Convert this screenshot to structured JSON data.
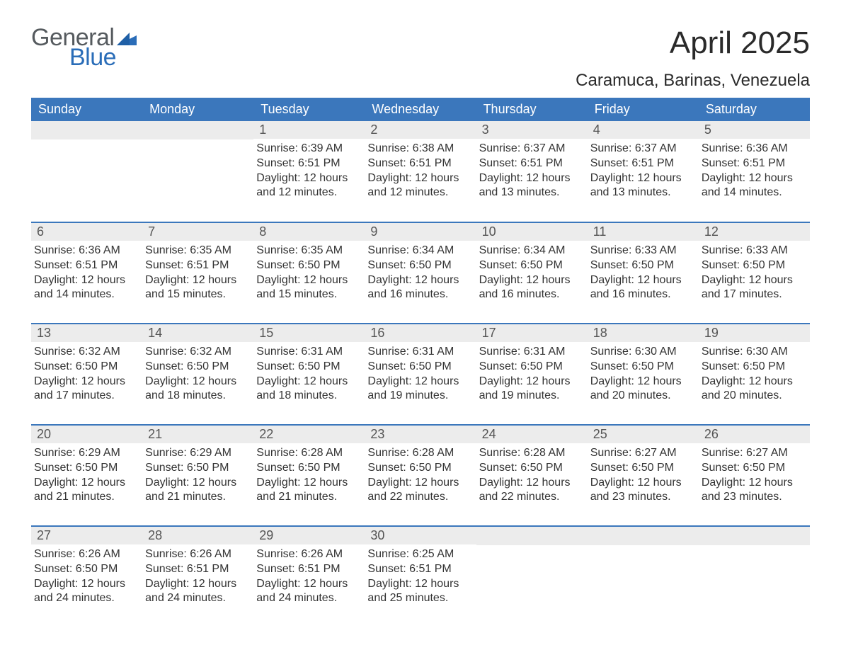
{
  "brand": {
    "line1": "General",
    "line2": "Blue",
    "text_color": "#555a5e",
    "accent_color": "#2a6db8"
  },
  "title": "April 2025",
  "location": "Caramuca, Barinas, Venezuela",
  "colors": {
    "header_bg": "#3b77bc",
    "header_text": "#ffffff",
    "daynum_bg": "#ececec",
    "week_divider": "#3b77bc",
    "body_text": "#333333",
    "background": "#ffffff"
  },
  "typography": {
    "title_fontsize": 44,
    "location_fontsize": 24,
    "dow_fontsize": 18,
    "cell_fontsize": 16
  },
  "labels": {
    "sunrise": "Sunrise: ",
    "sunset": "Sunset: ",
    "daylight_prefix": "Daylight: ",
    "daylight_join": " and ",
    "daylight_suffix": "."
  },
  "days_of_week": [
    "Sunday",
    "Monday",
    "Tuesday",
    "Wednesday",
    "Thursday",
    "Friday",
    "Saturday"
  ],
  "weeks": [
    [
      null,
      null,
      {
        "n": "1",
        "sunrise": "6:39 AM",
        "sunset": "6:51 PM",
        "dl_h": "12 hours",
        "dl_m": "12 minutes"
      },
      {
        "n": "2",
        "sunrise": "6:38 AM",
        "sunset": "6:51 PM",
        "dl_h": "12 hours",
        "dl_m": "12 minutes"
      },
      {
        "n": "3",
        "sunrise": "6:37 AM",
        "sunset": "6:51 PM",
        "dl_h": "12 hours",
        "dl_m": "13 minutes"
      },
      {
        "n": "4",
        "sunrise": "6:37 AM",
        "sunset": "6:51 PM",
        "dl_h": "12 hours",
        "dl_m": "13 minutes"
      },
      {
        "n": "5",
        "sunrise": "6:36 AM",
        "sunset": "6:51 PM",
        "dl_h": "12 hours",
        "dl_m": "14 minutes"
      }
    ],
    [
      {
        "n": "6",
        "sunrise": "6:36 AM",
        "sunset": "6:51 PM",
        "dl_h": "12 hours",
        "dl_m": "14 minutes"
      },
      {
        "n": "7",
        "sunrise": "6:35 AM",
        "sunset": "6:51 PM",
        "dl_h": "12 hours",
        "dl_m": "15 minutes"
      },
      {
        "n": "8",
        "sunrise": "6:35 AM",
        "sunset": "6:50 PM",
        "dl_h": "12 hours",
        "dl_m": "15 minutes"
      },
      {
        "n": "9",
        "sunrise": "6:34 AM",
        "sunset": "6:50 PM",
        "dl_h": "12 hours",
        "dl_m": "16 minutes"
      },
      {
        "n": "10",
        "sunrise": "6:34 AM",
        "sunset": "6:50 PM",
        "dl_h": "12 hours",
        "dl_m": "16 minutes"
      },
      {
        "n": "11",
        "sunrise": "6:33 AM",
        "sunset": "6:50 PM",
        "dl_h": "12 hours",
        "dl_m": "16 minutes"
      },
      {
        "n": "12",
        "sunrise": "6:33 AM",
        "sunset": "6:50 PM",
        "dl_h": "12 hours",
        "dl_m": "17 minutes"
      }
    ],
    [
      {
        "n": "13",
        "sunrise": "6:32 AM",
        "sunset": "6:50 PM",
        "dl_h": "12 hours",
        "dl_m": "17 minutes"
      },
      {
        "n": "14",
        "sunrise": "6:32 AM",
        "sunset": "6:50 PM",
        "dl_h": "12 hours",
        "dl_m": "18 minutes"
      },
      {
        "n": "15",
        "sunrise": "6:31 AM",
        "sunset": "6:50 PM",
        "dl_h": "12 hours",
        "dl_m": "18 minutes"
      },
      {
        "n": "16",
        "sunrise": "6:31 AM",
        "sunset": "6:50 PM",
        "dl_h": "12 hours",
        "dl_m": "19 minutes"
      },
      {
        "n": "17",
        "sunrise": "6:31 AM",
        "sunset": "6:50 PM",
        "dl_h": "12 hours",
        "dl_m": "19 minutes"
      },
      {
        "n": "18",
        "sunrise": "6:30 AM",
        "sunset": "6:50 PM",
        "dl_h": "12 hours",
        "dl_m": "20 minutes"
      },
      {
        "n": "19",
        "sunrise": "6:30 AM",
        "sunset": "6:50 PM",
        "dl_h": "12 hours",
        "dl_m": "20 minutes"
      }
    ],
    [
      {
        "n": "20",
        "sunrise": "6:29 AM",
        "sunset": "6:50 PM",
        "dl_h": "12 hours",
        "dl_m": "21 minutes"
      },
      {
        "n": "21",
        "sunrise": "6:29 AM",
        "sunset": "6:50 PM",
        "dl_h": "12 hours",
        "dl_m": "21 minutes"
      },
      {
        "n": "22",
        "sunrise": "6:28 AM",
        "sunset": "6:50 PM",
        "dl_h": "12 hours",
        "dl_m": "21 minutes"
      },
      {
        "n": "23",
        "sunrise": "6:28 AM",
        "sunset": "6:50 PM",
        "dl_h": "12 hours",
        "dl_m": "22 minutes"
      },
      {
        "n": "24",
        "sunrise": "6:28 AM",
        "sunset": "6:50 PM",
        "dl_h": "12 hours",
        "dl_m": "22 minutes"
      },
      {
        "n": "25",
        "sunrise": "6:27 AM",
        "sunset": "6:50 PM",
        "dl_h": "12 hours",
        "dl_m": "23 minutes"
      },
      {
        "n": "26",
        "sunrise": "6:27 AM",
        "sunset": "6:50 PM",
        "dl_h": "12 hours",
        "dl_m": "23 minutes"
      }
    ],
    [
      {
        "n": "27",
        "sunrise": "6:26 AM",
        "sunset": "6:50 PM",
        "dl_h": "12 hours",
        "dl_m": "24 minutes"
      },
      {
        "n": "28",
        "sunrise": "6:26 AM",
        "sunset": "6:51 PM",
        "dl_h": "12 hours",
        "dl_m": "24 minutes"
      },
      {
        "n": "29",
        "sunrise": "6:26 AM",
        "sunset": "6:51 PM",
        "dl_h": "12 hours",
        "dl_m": "24 minutes"
      },
      {
        "n": "30",
        "sunrise": "6:25 AM",
        "sunset": "6:51 PM",
        "dl_h": "12 hours",
        "dl_m": "25 minutes"
      },
      null,
      null,
      null
    ]
  ]
}
